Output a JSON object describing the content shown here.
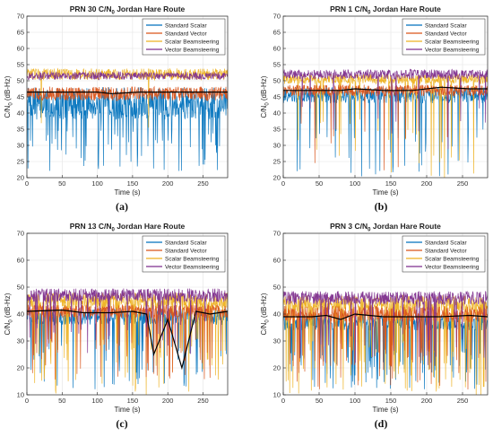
{
  "figure": {
    "captions": [
      "(a)",
      "(b)",
      "(c)",
      "(d)"
    ]
  },
  "series_colors": {
    "Standard Scalar": "#0072BD",
    "Standard Vector": "#D95319",
    "Scalar Beamsteering": "#EDB120",
    "Vector Beamsteering": "#7E2F8E",
    "reference_line": "#000000"
  },
  "chart_data": [
    {
      "type": "line",
      "title": "PRN 30 C/N",
      "title_sub": "0",
      "title_rest": " Jordan Hare Route",
      "xlabel": "Time (s)",
      "ylabel": "C/N",
      "ylabel_sub": "0",
      "ylabel_rest": " (dB-Hz)",
      "xlim": [
        0,
        285
      ],
      "ylim": [
        20,
        70
      ],
      "xticks": [
        0,
        50,
        100,
        150,
        200,
        250
      ],
      "yticks": [
        20,
        25,
        30,
        35,
        40,
        45,
        50,
        55,
        60,
        65,
        70
      ],
      "grid": true,
      "legend_position": "top-right",
      "series": [
        {
          "name": "Standard Scalar",
          "mean": 43,
          "noise": 5,
          "dropouts": 40,
          "dropout_floor": 22
        },
        {
          "name": "Standard Vector",
          "mean": 46,
          "noise": 2.2,
          "dropouts": 0,
          "dropout_floor": 40
        },
        {
          "name": "Scalar Beamsteering",
          "mean": 52,
          "noise": 1.8,
          "dropouts": 2,
          "dropout_floor": 22
        },
        {
          "name": "Vector Beamsteering",
          "mean": 51.5,
          "noise": 1.2,
          "dropouts": 0,
          "dropout_floor": 45
        }
      ],
      "reference_line": {
        "x": [
          0,
          50,
          100,
          120,
          160,
          200,
          250,
          285
        ],
        "y": [
          46.5,
          46.5,
          46.5,
          46,
          46.5,
          46.5,
          46.5,
          46.5
        ]
      }
    },
    {
      "type": "line",
      "title": "PRN 1 C/N",
      "title_sub": "0",
      "title_rest": " Jordan Hare Route",
      "xlabel": "Time (s)",
      "ylabel": "C/N",
      "ylabel_sub": "0",
      "ylabel_rest": " (dB-Hz)",
      "xlim": [
        0,
        285
      ],
      "ylim": [
        20,
        70
      ],
      "xticks": [
        0,
        50,
        100,
        150,
        200,
        250
      ],
      "yticks": [
        20,
        25,
        30,
        35,
        40,
        45,
        50,
        55,
        60,
        65,
        70
      ],
      "grid": true,
      "legend_position": "top-right",
      "series": [
        {
          "name": "Standard Scalar",
          "mean": 45.5,
          "noise": 2.5,
          "dropouts": 25,
          "dropout_floor": 20
        },
        {
          "name": "Standard Vector",
          "mean": 47,
          "noise": 1.8,
          "dropouts": 8,
          "dropout_floor": 22
        },
        {
          "name": "Scalar Beamsteering",
          "mean": 50.5,
          "noise": 1.5,
          "dropouts": 12,
          "dropout_floor": 20
        },
        {
          "name": "Vector Beamsteering",
          "mean": 52,
          "noise": 1.5,
          "dropouts": 10,
          "dropout_floor": 28
        }
      ],
      "reference_line": {
        "x": [
          0,
          40,
          80,
          100,
          140,
          180,
          220,
          260,
          285
        ],
        "y": [
          47,
          47,
          47,
          47.5,
          47,
          47,
          48,
          47.5,
          47.5
        ]
      }
    },
    {
      "type": "line",
      "title": "PRN 13 C/N",
      "title_sub": "0",
      "title_rest": " Jordan Hare Route",
      "xlabel": "Time (s)",
      "ylabel": "C/N",
      "ylabel_sub": "0",
      "ylabel_rest": " (dB-Hz)",
      "xlim": [
        0,
        285
      ],
      "ylim": [
        10,
        70
      ],
      "xticks": [
        0,
        50,
        100,
        150,
        200,
        250
      ],
      "yticks": [
        10,
        20,
        30,
        40,
        50,
        60,
        70
      ],
      "grid": true,
      "legend_position": "top-right",
      "series": [
        {
          "name": "Standard Scalar",
          "mean": 39,
          "noise": 3,
          "dropouts": 35,
          "dropout_floor": 12
        },
        {
          "name": "Standard Vector",
          "mean": 41,
          "noise": 2.5,
          "dropouts": 25,
          "dropout_floor": 15
        },
        {
          "name": "Scalar Beamsteering",
          "mean": 45,
          "noise": 3,
          "dropouts": 45,
          "dropout_floor": 10
        },
        {
          "name": "Vector Beamsteering",
          "mean": 47,
          "noise": 2.5,
          "dropouts": 20,
          "dropout_floor": 25
        }
      ],
      "reference_line": {
        "x": [
          0,
          50,
          80,
          120,
          150,
          170,
          180,
          200,
          220,
          240,
          260,
          285
        ],
        "y": [
          41,
          41.5,
          40.5,
          40.5,
          41,
          40,
          25,
          38,
          20,
          41,
          40,
          41
        ]
      }
    },
    {
      "type": "line",
      "title": "PRN 3 C/N",
      "title_sub": "0",
      "title_rest": " Jordan Hare Route",
      "xlabel": "Time (s)",
      "ylabel": "C/N",
      "ylabel_sub": "0",
      "ylabel_rest": " (dB-Hz)",
      "xlim": [
        0,
        285
      ],
      "ylim": [
        10,
        70
      ],
      "xticks": [
        0,
        50,
        100,
        150,
        200,
        250
      ],
      "yticks": [
        10,
        20,
        30,
        40,
        50,
        60,
        70
      ],
      "grid": true,
      "legend_position": "top-right",
      "series": [
        {
          "name": "Standard Scalar",
          "mean": 37,
          "noise": 3,
          "dropouts": 55,
          "dropout_floor": 12
        },
        {
          "name": "Standard Vector",
          "mean": 40,
          "noise": 3,
          "dropouts": 40,
          "dropout_floor": 12
        },
        {
          "name": "Scalar Beamsteering",
          "mean": 44,
          "noise": 3,
          "dropouts": 55,
          "dropout_floor": 10
        },
        {
          "name": "Vector Beamsteering",
          "mean": 46,
          "noise": 2.5,
          "dropouts": 20,
          "dropout_floor": 20
        }
      ],
      "reference_line": {
        "x": [
          0,
          40,
          60,
          80,
          100,
          140,
          180,
          220,
          260,
          285
        ],
        "y": [
          39,
          39,
          39.5,
          38,
          40,
          39,
          39,
          39,
          39.5,
          39
        ]
      }
    }
  ]
}
